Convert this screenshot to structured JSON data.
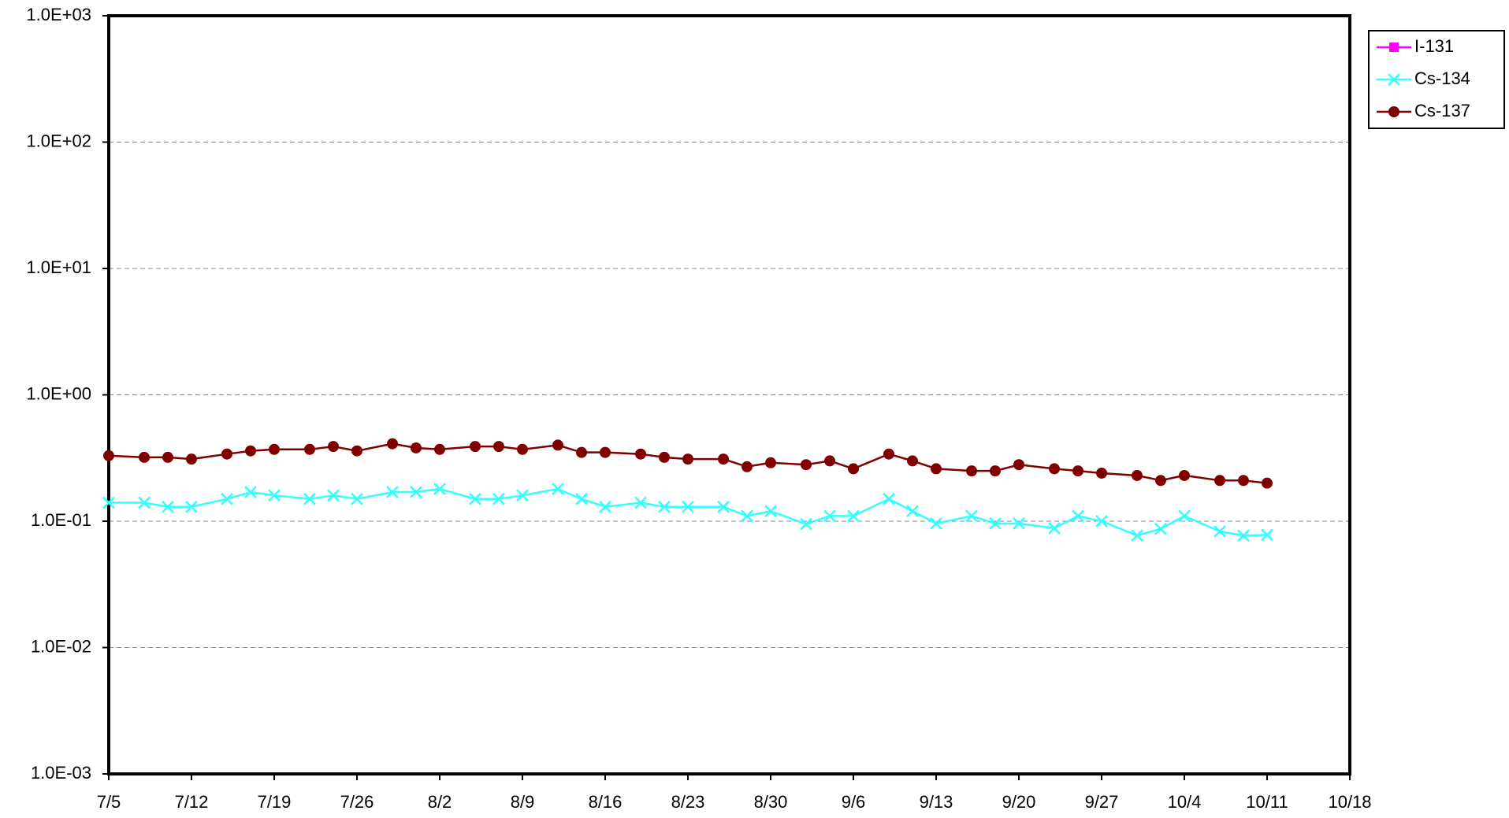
{
  "chart_data": {
    "type": "line",
    "log_y": true,
    "grid": true,
    "legend": "top-right",
    "x": [
      "7/5",
      "7/8",
      "7/10",
      "7/12",
      "7/15",
      "7/17",
      "7/19",
      "7/22",
      "7/24",
      "7/26",
      "7/29",
      "7/31",
      "8/2",
      "8/5",
      "8/7",
      "8/9",
      "8/12",
      "8/14",
      "8/16",
      "8/19",
      "8/21",
      "8/23",
      "8/26",
      "8/28",
      "8/30",
      "9/2",
      "9/4",
      "9/6",
      "9/9",
      "9/11",
      "9/13",
      "9/16",
      "9/18",
      "9/20",
      "9/23",
      "9/25",
      "9/27",
      "9/30",
      "10/2",
      "10/4",
      "10/7",
      "10/9",
      "10/11"
    ],
    "xlim": [
      "7/5",
      "10/18"
    ],
    "xticks": [
      "7/5",
      "7/12",
      "7/19",
      "7/26",
      "8/2",
      "8/9",
      "8/16",
      "8/23",
      "8/30",
      "9/6",
      "9/13",
      "9/20",
      "9/27",
      "10/4",
      "10/11",
      "10/18"
    ],
    "ylim": [
      0.001,
      1000
    ],
    "yticks": [
      {
        "value": 0.001,
        "label": "1.0E-03"
      },
      {
        "value": 0.01,
        "label": "1.0E-02"
      },
      {
        "value": 0.1,
        "label": "1.0E-01"
      },
      {
        "value": 1,
        "label": "1.0E+00"
      },
      {
        "value": 10,
        "label": "1.0E+01"
      },
      {
        "value": 100,
        "label": "1.0E+02"
      },
      {
        "value": 1000,
        "label": "1.0E+03"
      }
    ],
    "series": [
      {
        "name": "I-131",
        "color": "#ff00ff",
        "marker": "square",
        "values": [
          null,
          null,
          null,
          null,
          null,
          null,
          null,
          null,
          null,
          null,
          null,
          null,
          null,
          null,
          null,
          null,
          null,
          null,
          null,
          null,
          null,
          null,
          null,
          null,
          null,
          null,
          null,
          null,
          null,
          null,
          null,
          null,
          null,
          null,
          null,
          null,
          null,
          null,
          null,
          null,
          null,
          null,
          null
        ]
      },
      {
        "name": "Cs-134",
        "color": "#33ffff",
        "marker": "x",
        "values": [
          0.14,
          0.14,
          0.13,
          0.13,
          0.15,
          0.17,
          0.16,
          0.15,
          0.16,
          0.15,
          0.17,
          0.17,
          0.18,
          0.15,
          0.15,
          0.16,
          0.18,
          0.15,
          0.13,
          0.14,
          0.13,
          0.13,
          0.13,
          0.11,
          0.12,
          0.095,
          0.11,
          0.11,
          0.15,
          0.12,
          0.096,
          0.11,
          0.096,
          0.096,
          0.088,
          0.11,
          0.1,
          0.077,
          0.087,
          0.11,
          0.083,
          0.077,
          0.078
        ]
      },
      {
        "name": "Cs-137",
        "color": "#800000",
        "marker": "circle",
        "values": [
          0.33,
          0.32,
          0.32,
          0.31,
          0.34,
          0.36,
          0.37,
          0.37,
          0.39,
          0.36,
          0.41,
          0.38,
          0.37,
          0.39,
          0.39,
          0.37,
          0.4,
          0.35,
          0.35,
          0.34,
          0.32,
          0.31,
          0.31,
          0.27,
          0.29,
          0.28,
          0.3,
          0.26,
          0.34,
          0.3,
          0.26,
          0.25,
          0.25,
          0.28,
          0.26,
          0.25,
          0.24,
          0.23,
          0.21,
          0.23,
          0.21,
          0.21,
          0.2
        ]
      }
    ]
  }
}
